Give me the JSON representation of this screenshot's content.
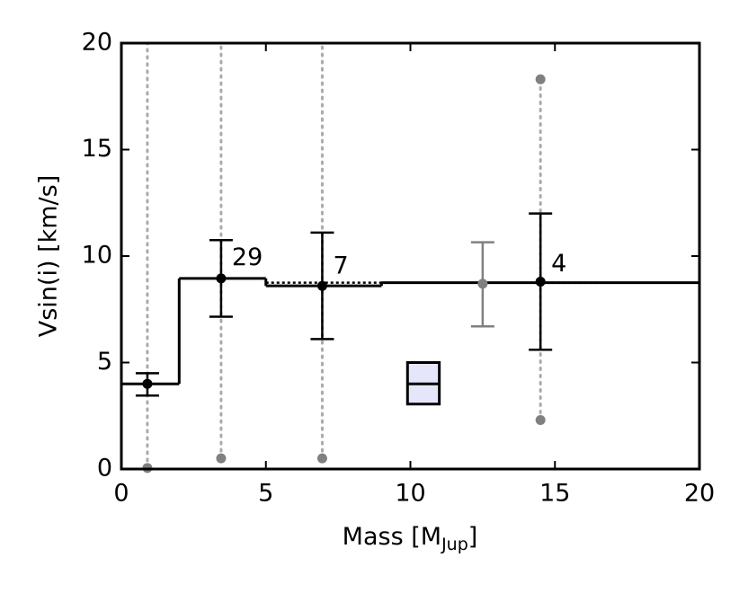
{
  "chart_data": {
    "type": "errorbar",
    "ylabel": "Vsin(i) [km/s]",
    "xlabel": {
      "text": "Mass [M",
      "subscript": "Jup",
      "suffix": "]"
    },
    "xlim": [
      0,
      20
    ],
    "ylim": [
      0,
      20
    ],
    "xticks": [
      0,
      5,
      10,
      15,
      20
    ],
    "yticks": [
      0,
      5,
      10,
      15,
      20
    ],
    "step": {
      "color": "#000000",
      "bins": [
        0,
        2,
        5,
        9,
        20
      ],
      "values": [
        4.0,
        8.95,
        8.6,
        8.75
      ]
    },
    "dotted_line": {
      "color": "#000000",
      "x": [
        5,
        20
      ],
      "values": [
        8.75,
        8.75
      ]
    },
    "ranges": {
      "color": "#aaaaaa",
      "x": [
        0.9,
        3.45,
        6.95,
        14.5
      ],
      "low": [
        0.05,
        0.5,
        0.5,
        2.3
      ],
      "high": [
        20,
        20,
        20,
        18.3
      ]
    },
    "range_points": {
      "color": "#808080",
      "x": [
        0.9,
        3.45,
        6.95,
        14.5,
        14.5
      ],
      "values": [
        0.05,
        0.5,
        0.5,
        18.3,
        2.3
      ]
    },
    "points": [
      {
        "color": "#000000",
        "x": [
          0.9,
          3.45,
          6.95,
          14.5
        ],
        "values": [
          4.0,
          8.95,
          8.6,
          8.8
        ],
        "lower": [
          3.45,
          7.15,
          6.1,
          5.6
        ],
        "upper": [
          4.5,
          10.75,
          11.1,
          12.0
        ]
      },
      {
        "color": "#808080",
        "x": [
          12.5
        ],
        "values": [
          8.7
        ],
        "lower": [
          6.7
        ],
        "upper": [
          10.65
        ]
      }
    ],
    "annotations": [
      {
        "text": "29",
        "x": 3.45,
        "y": 9.9
      },
      {
        "text": "7",
        "x": 6.95,
        "y": 9.5
      },
      {
        "text": "4",
        "x": 14.5,
        "y": 9.6
      }
    ],
    "box": {
      "color": "#e6e6fa",
      "x": [
        9.9,
        11.0
      ],
      "low": 3.05,
      "median": 4.0,
      "high": 5.0
    }
  }
}
